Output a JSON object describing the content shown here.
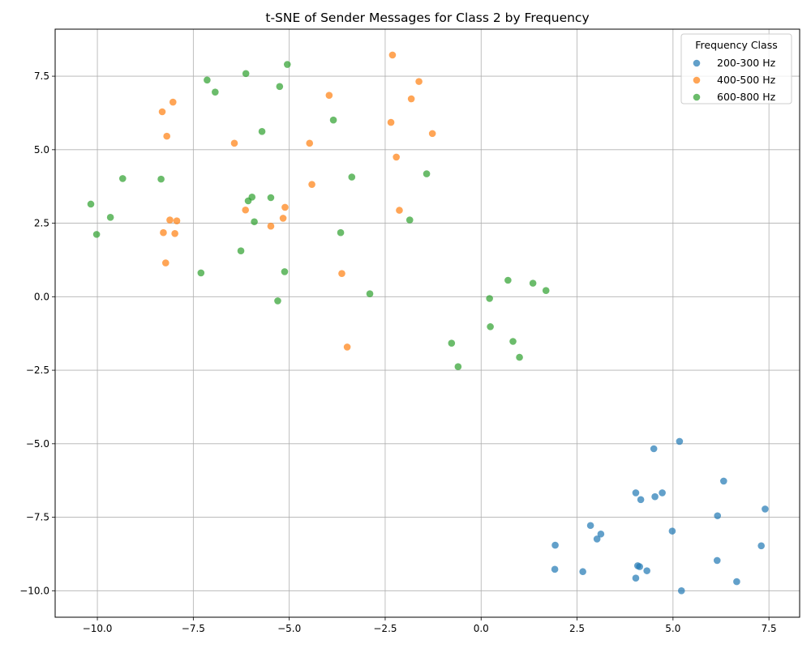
{
  "chart_data": {
    "type": "scatter",
    "title": "t-SNE of Sender Messages for Class 2 by Frequency",
    "xlabel": "",
    "ylabel": "",
    "xlim": [
      -11.1,
      8.3
    ],
    "ylim": [
      -10.9,
      9.1
    ],
    "grid": true,
    "x_ticks": [
      -10.0,
      -7.5,
      -5.0,
      -2.5,
      0.0,
      2.5,
      5.0,
      7.5
    ],
    "x_tick_labels": [
      "−10.0",
      "−7.5",
      "−5.0",
      "−2.5",
      "0.0",
      "2.5",
      "5.0",
      "7.5"
    ],
    "y_ticks": [
      -10.0,
      -7.5,
      -5.0,
      -2.5,
      0.0,
      2.5,
      5.0,
      7.5
    ],
    "y_tick_labels": [
      "−10.0",
      "−7.5",
      "−5.0",
      "−2.5",
      "0.0",
      "2.5",
      "5.0",
      "7.5"
    ],
    "legend": {
      "title": "Frequency Class",
      "placement": "top-right"
    },
    "series": [
      {
        "name": "200-300 Hz",
        "color": "#1f77b4",
        "points": [
          [
            5.17,
            -4.92
          ],
          [
            4.5,
            -5.17
          ],
          [
            6.32,
            -6.27
          ],
          [
            4.03,
            -6.67
          ],
          [
            4.72,
            -6.67
          ],
          [
            4.53,
            -6.8
          ],
          [
            4.16,
            -6.9
          ],
          [
            7.4,
            -7.22
          ],
          [
            6.16,
            -7.45
          ],
          [
            2.85,
            -7.78
          ],
          [
            4.98,
            -7.97
          ],
          [
            3.12,
            -8.07
          ],
          [
            3.02,
            -8.24
          ],
          [
            1.93,
            -8.45
          ],
          [
            7.3,
            -8.47
          ],
          [
            6.15,
            -8.97
          ],
          [
            4.08,
            -9.15
          ],
          [
            4.13,
            -9.18
          ],
          [
            1.92,
            -9.27
          ],
          [
            4.32,
            -9.32
          ],
          [
            2.65,
            -9.35
          ],
          [
            4.03,
            -9.57
          ],
          [
            6.66,
            -9.69
          ],
          [
            5.22,
            -10.0
          ]
        ]
      },
      {
        "name": "400-500 Hz",
        "color": "#ff7f0e",
        "points": [
          [
            -2.31,
            8.22
          ],
          [
            -1.62,
            7.32
          ],
          [
            -3.96,
            6.85
          ],
          [
            -1.82,
            6.73
          ],
          [
            -8.03,
            6.62
          ],
          [
            -8.31,
            6.29
          ],
          [
            -2.35,
            5.93
          ],
          [
            -1.27,
            5.55
          ],
          [
            -8.19,
            5.46
          ],
          [
            -6.43,
            5.22
          ],
          [
            -4.47,
            5.22
          ],
          [
            -2.21,
            4.75
          ],
          [
            -4.41,
            3.82
          ],
          [
            -5.11,
            3.04
          ],
          [
            -6.14,
            2.95
          ],
          [
            -2.13,
            2.94
          ],
          [
            -5.16,
            2.67
          ],
          [
            -8.11,
            2.61
          ],
          [
            -7.93,
            2.58
          ],
          [
            -5.48,
            2.4
          ],
          [
            -8.28,
            2.18
          ],
          [
            -7.98,
            2.15
          ],
          [
            -8.22,
            1.15
          ],
          [
            -3.63,
            0.79
          ],
          [
            -3.49,
            -1.71
          ]
        ]
      },
      {
        "name": "600-800 Hz",
        "color": "#2ca02c",
        "points": [
          [
            -5.05,
            7.9
          ],
          [
            -6.13,
            7.59
          ],
          [
            -7.14,
            7.37
          ],
          [
            -5.25,
            7.15
          ],
          [
            -6.93,
            6.96
          ],
          [
            -3.85,
            6.01
          ],
          [
            -5.71,
            5.62
          ],
          [
            -1.42,
            4.18
          ],
          [
            -3.37,
            4.07
          ],
          [
            -9.34,
            4.02
          ],
          [
            -8.34,
            4.0
          ],
          [
            -5.48,
            3.37
          ],
          [
            -5.97,
            3.39
          ],
          [
            -6.07,
            3.26
          ],
          [
            -10.17,
            3.15
          ],
          [
            -9.66,
            2.7
          ],
          [
            -5.91,
            2.55
          ],
          [
            -1.86,
            2.61
          ],
          [
            -10.02,
            2.12
          ],
          [
            -3.66,
            2.18
          ],
          [
            -6.26,
            1.56
          ],
          [
            -7.3,
            0.81
          ],
          [
            -5.12,
            0.85
          ],
          [
            -2.9,
            0.1
          ],
          [
            -5.3,
            -0.14
          ],
          [
            0.7,
            0.56
          ],
          [
            1.35,
            0.46
          ],
          [
            1.69,
            0.21
          ],
          [
            0.22,
            -0.06
          ],
          [
            0.24,
            -1.02
          ],
          [
            0.83,
            -1.52
          ],
          [
            -0.77,
            -1.58
          ],
          [
            1.0,
            -2.06
          ],
          [
            -0.6,
            -2.38
          ]
        ]
      }
    ]
  }
}
